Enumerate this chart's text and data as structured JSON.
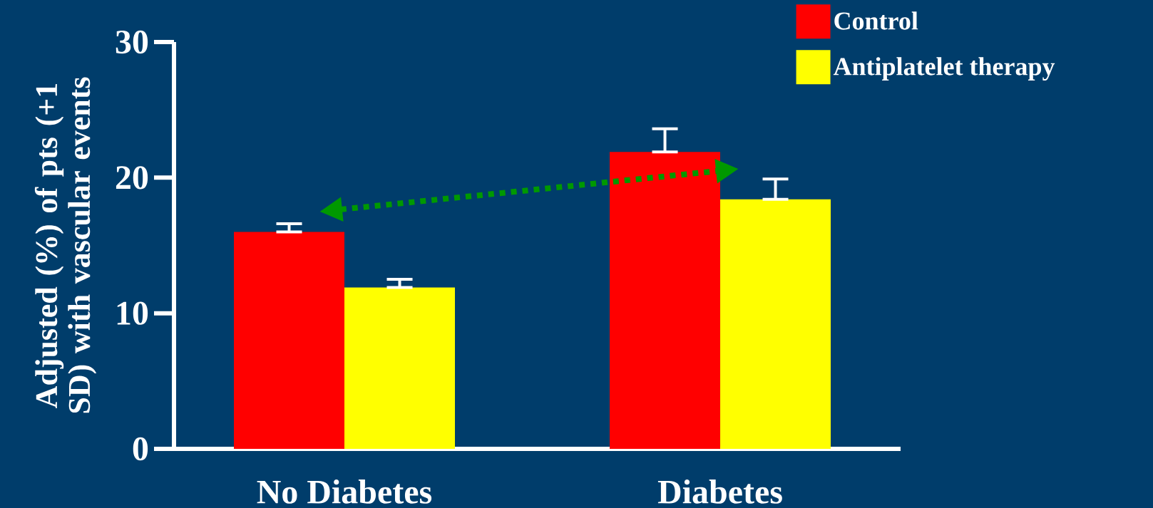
{
  "chart_data": {
    "type": "bar",
    "ylabel": "Adjusted (%) of pts (+1 SD) with vascular events",
    "categories": [
      "No Diabetes",
      "Diabetes"
    ],
    "series": [
      {
        "name": "Control",
        "color": "#ff0000",
        "values": [
          16.0,
          21.9
        ],
        "errors": [
          [
            16.0,
            16.6
          ],
          [
            21.9,
            23.6
          ]
        ]
      },
      {
        "name": "Antiplatelet therapy",
        "color": "#ffff00",
        "values": [
          11.9,
          18.4
        ],
        "errors": [
          [
            11.9,
            12.5
          ],
          [
            18.4,
            19.9
          ]
        ]
      }
    ],
    "ylim": [
      0,
      30
    ],
    "yticks": [
      0,
      10,
      20,
      30
    ],
    "legend": "top right"
  }
}
